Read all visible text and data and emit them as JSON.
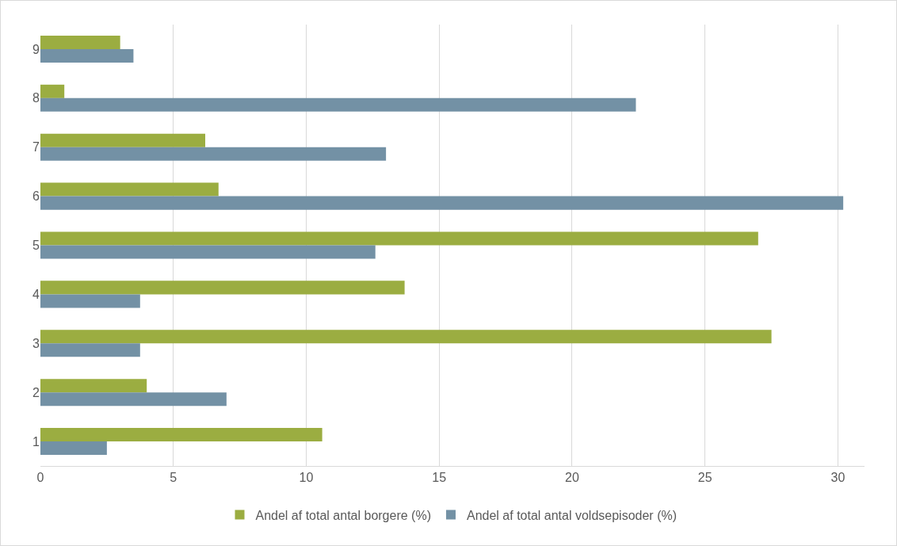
{
  "chart_data": {
    "type": "bar",
    "orientation": "horizontal",
    "categories": [
      "9",
      "8",
      "7",
      "6",
      "5",
      "4",
      "3",
      "2",
      "1"
    ],
    "series": [
      {
        "name": "Andel af total antal borgere (%)",
        "color": "#9bad41",
        "values": [
          3.0,
          0.9,
          6.2,
          6.7,
          27.0,
          13.7,
          27.5,
          4.0,
          10.6
        ]
      },
      {
        "name": "Andel af total antal voldsepisoder (%)",
        "color": "#7391a5",
        "values": [
          3.5,
          22.4,
          13.0,
          30.2,
          12.6,
          3.75,
          3.75,
          7.0,
          2.5
        ]
      }
    ],
    "xlim": [
      0,
      31
    ],
    "xticks": [
      0,
      5,
      10,
      15,
      20,
      25,
      30
    ],
    "grid": "x",
    "legend": "bottom"
  }
}
